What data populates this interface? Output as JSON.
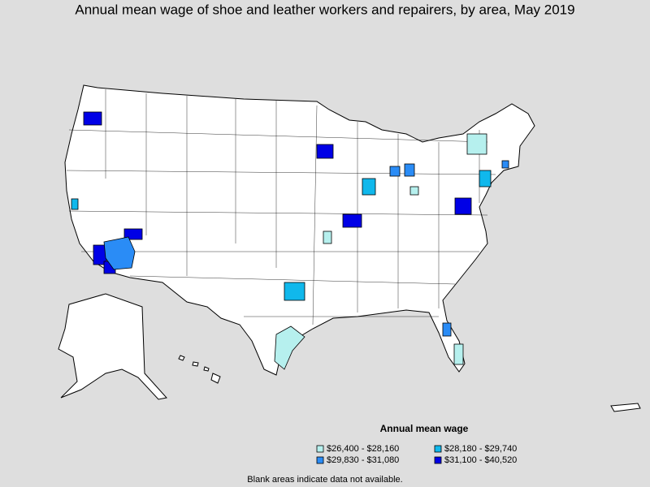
{
  "title": "Annual mean wage of shoe and leather workers and repairers, by area, May 2019",
  "legend": {
    "title": "Annual mean wage",
    "items": [
      {
        "label": "$26,400 - $28,160",
        "color": "#b6f0ee"
      },
      {
        "label": "$28,180 - $29,740",
        "color": "#10b8ec"
      },
      {
        "label": "$29,830 - $31,080",
        "color": "#2a8cf6"
      },
      {
        "label": "$31,100 - $40,520",
        "color": "#0000e6"
      }
    ]
  },
  "note": "Blank areas indicate data not available."
}
